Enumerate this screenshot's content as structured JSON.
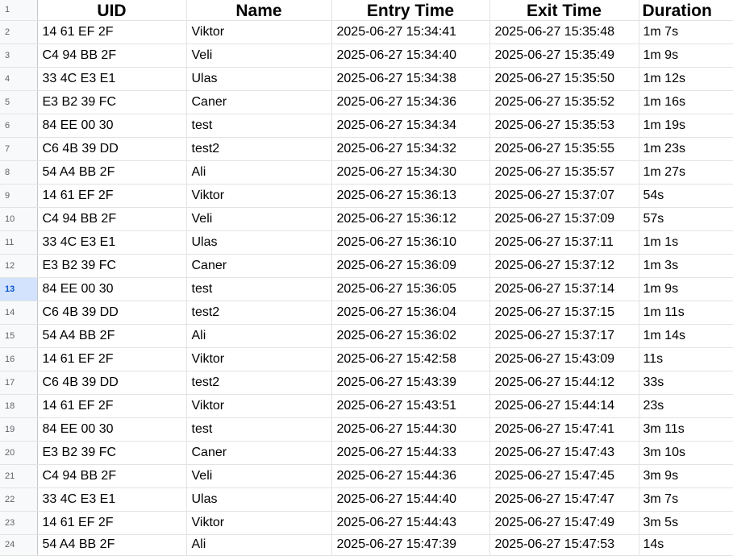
{
  "sheet": {
    "selected_row": "13",
    "headers": {
      "uid": "UID",
      "name": "Name",
      "entry_time": "Entry Time",
      "exit_time": "Exit Time",
      "duration": "Duration"
    },
    "row_numbers": [
      "1",
      "2",
      "3",
      "4",
      "5",
      "6",
      "7",
      "8",
      "9",
      "10",
      "11",
      "12",
      "13",
      "14",
      "15",
      "16",
      "17",
      "18",
      "19",
      "20",
      "21",
      "22",
      "23",
      "24"
    ],
    "rows": [
      {
        "num": "2",
        "uid": "14 61 EF 2F",
        "name": "Viktor",
        "entry": "2025-06-27 15:34:41",
        "exit": "2025-06-27 15:35:48",
        "duration": "1m 7s"
      },
      {
        "num": "3",
        "uid": "C4 94 BB 2F",
        "name": "Veli",
        "entry": "2025-06-27 15:34:40",
        "exit": "2025-06-27 15:35:49",
        "duration": "1m 9s"
      },
      {
        "num": "4",
        "uid": "33 4C E3 E1",
        "name": "Ulas",
        "entry": "2025-06-27 15:34:38",
        "exit": "2025-06-27 15:35:50",
        "duration": "1m 12s"
      },
      {
        "num": "5",
        "uid": "E3 B2 39 FC",
        "name": "Caner",
        "entry": "2025-06-27 15:34:36",
        "exit": "2025-06-27 15:35:52",
        "duration": "1m 16s"
      },
      {
        "num": "6",
        "uid": "84 EE 00 30",
        "name": "test",
        "entry": "2025-06-27 15:34:34",
        "exit": "2025-06-27 15:35:53",
        "duration": "1m 19s"
      },
      {
        "num": "7",
        "uid": "C6 4B 39 DD",
        "name": "test2",
        "entry": "2025-06-27 15:34:32",
        "exit": "2025-06-27 15:35:55",
        "duration": "1m 23s"
      },
      {
        "num": "8",
        "uid": "54 A4 BB 2F",
        "name": "Ali",
        "entry": "2025-06-27 15:34:30",
        "exit": "2025-06-27 15:35:57",
        "duration": "1m 27s"
      },
      {
        "num": "9",
        "uid": "14 61 EF 2F",
        "name": "Viktor",
        "entry": "2025-06-27 15:36:13",
        "exit": "2025-06-27 15:37:07",
        "duration": "54s"
      },
      {
        "num": "10",
        "uid": "C4 94 BB 2F",
        "name": "Veli",
        "entry": "2025-06-27 15:36:12",
        "exit": "2025-06-27 15:37:09",
        "duration": "57s"
      },
      {
        "num": "11",
        "uid": "33 4C E3 E1",
        "name": "Ulas",
        "entry": "2025-06-27 15:36:10",
        "exit": "2025-06-27 15:37:11",
        "duration": "1m 1s"
      },
      {
        "num": "12",
        "uid": "E3 B2 39 FC",
        "name": "Caner",
        "entry": "2025-06-27 15:36:09",
        "exit": "2025-06-27 15:37:12",
        "duration": "1m 3s"
      },
      {
        "num": "13",
        "uid": "84 EE 00 30",
        "name": "test",
        "entry": "2025-06-27 15:36:05",
        "exit": "2025-06-27 15:37:14",
        "duration": "1m 9s"
      },
      {
        "num": "14",
        "uid": "C6 4B 39 DD",
        "name": "test2",
        "entry": "2025-06-27 15:36:04",
        "exit": "2025-06-27 15:37:15",
        "duration": "1m 11s"
      },
      {
        "num": "15",
        "uid": "54 A4 BB 2F",
        "name": "Ali",
        "entry": "2025-06-27 15:36:02",
        "exit": "2025-06-27 15:37:17",
        "duration": "1m 14s"
      },
      {
        "num": "16",
        "uid": "14 61 EF 2F",
        "name": "Viktor",
        "entry": "2025-06-27 15:42:58",
        "exit": "2025-06-27 15:43:09",
        "duration": "11s"
      },
      {
        "num": "17",
        "uid": "C6 4B 39 DD",
        "name": "test2",
        "entry": "2025-06-27 15:43:39",
        "exit": "2025-06-27 15:44:12",
        "duration": "33s"
      },
      {
        "num": "18",
        "uid": "14 61 EF 2F",
        "name": "Viktor",
        "entry": "2025-06-27 15:43:51",
        "exit": "2025-06-27 15:44:14",
        "duration": "23s"
      },
      {
        "num": "19",
        "uid": "84 EE 00 30",
        "name": "test",
        "entry": "2025-06-27 15:44:30",
        "exit": "2025-06-27 15:47:41",
        "duration": "3m 11s"
      },
      {
        "num": "20",
        "uid": "E3 B2 39 FC",
        "name": "Caner",
        "entry": "2025-06-27 15:44:33",
        "exit": "2025-06-27 15:47:43",
        "duration": "3m 10s"
      },
      {
        "num": "21",
        "uid": "C4 94 BB 2F",
        "name": "Veli",
        "entry": "2025-06-27 15:44:36",
        "exit": "2025-06-27 15:47:45",
        "duration": "3m 9s"
      },
      {
        "num": "22",
        "uid": "33 4C E3 E1",
        "name": "Ulas",
        "entry": "2025-06-27 15:44:40",
        "exit": "2025-06-27 15:47:47",
        "duration": "3m 7s"
      },
      {
        "num": "23",
        "uid": "14 61 EF 2F",
        "name": "Viktor",
        "entry": "2025-06-27 15:44:43",
        "exit": "2025-06-27 15:47:49",
        "duration": "3m 5s"
      },
      {
        "num": "24",
        "uid": "54 A4 BB 2F",
        "name": "Ali",
        "entry": "2025-06-27 15:47:39",
        "exit": "2025-06-27 15:47:53",
        "duration": "14s"
      }
    ]
  }
}
